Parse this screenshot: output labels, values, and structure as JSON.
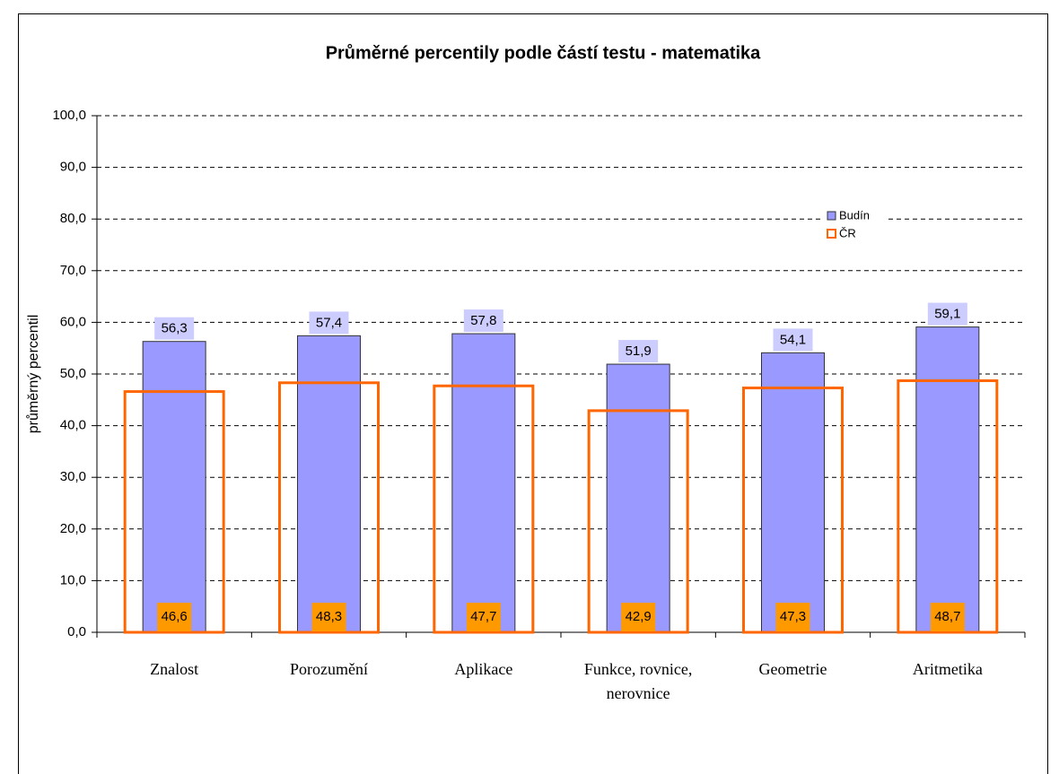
{
  "chart_data": {
    "type": "bar",
    "title": "Průměrné percentily podle částí testu - matematika",
    "y_label": "průměrný percentil",
    "categories": [
      "Znalost",
      "Porozumění",
      "Aplikace",
      "Funkce, rovnice, nerovnice",
      "Geometrie",
      "Aritmetika"
    ],
    "series": [
      {
        "name": "Budín",
        "color": "#9999ff",
        "values": [
          56.3,
          57.4,
          57.8,
          51.9,
          54.1,
          59.1
        ],
        "value_labels": [
          "56,3",
          "57,4",
          "57,8",
          "51,9",
          "54,1",
          "59,1"
        ]
      },
      {
        "name": "ČR",
        "color": "#ff6600",
        "values": [
          46.6,
          48.3,
          47.7,
          42.9,
          47.3,
          48.7
        ],
        "value_labels": [
          "46,6",
          "48,3",
          "47,7",
          "42,9",
          "47,3",
          "48,7"
        ]
      }
    ],
    "ylim": [
      0,
      100
    ],
    "yticks": [
      {
        "value": 0,
        "label": "0,0"
      },
      {
        "value": 10,
        "label": "10,0"
      },
      {
        "value": 20,
        "label": "20,0"
      },
      {
        "value": 30,
        "label": "30,0"
      },
      {
        "value": 40,
        "label": "40,0"
      },
      {
        "value": 50,
        "label": "50,0"
      },
      {
        "value": 60,
        "label": "60,0"
      },
      {
        "value": 70,
        "label": "70,0"
      },
      {
        "value": 80,
        "label": "80,0"
      },
      {
        "value": 90,
        "label": "90,0"
      },
      {
        "value": 100,
        "label": "100,0"
      }
    ],
    "grid": true,
    "legend": "right"
  }
}
